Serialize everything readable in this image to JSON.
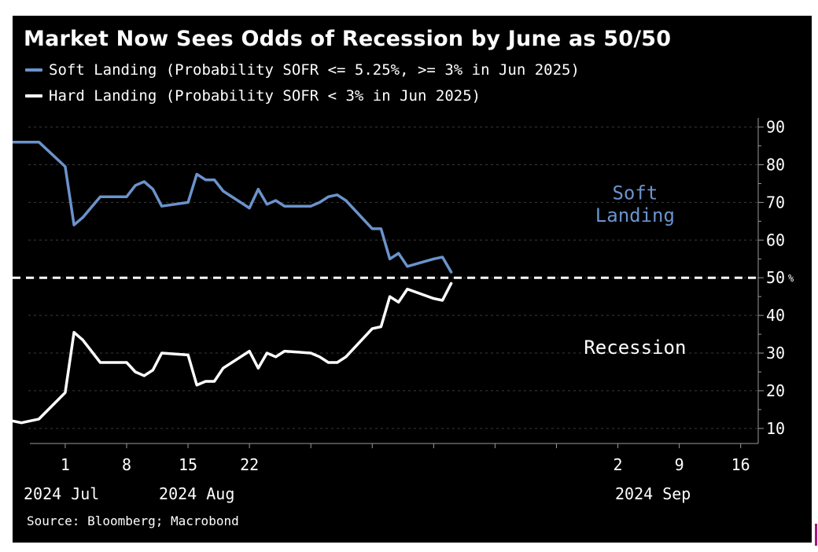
{
  "chart_data": {
    "type": "line",
    "title": "Market Now Sees Odds of Recession by June as 50/50",
    "source": "Source: Bloomberg; Macrobond",
    "x_tick_labels": [
      "1",
      "8",
      "15",
      "22",
      "2",
      "9",
      "16"
    ],
    "x_tick_dates": [
      "2024-07-01",
      "2024-07-08",
      "2024-07-15",
      "2024-07-22",
      "2024-09-02",
      "2024-09-09",
      "2024-09-16"
    ],
    "month_labels": [
      {
        "label": "2024 Jul",
        "date": "2024-06-25"
      },
      {
        "label": "2024 Aug",
        "date": "2024-07-16"
      },
      {
        "label": "2024 Sep",
        "date": "2024-09-06"
      }
    ],
    "xlim": [
      "2024-06-25",
      "2024-09-18"
    ],
    "y_ticks": [
      10,
      20,
      30,
      40,
      50,
      60,
      70,
      80,
      90
    ],
    "ylim": [
      6,
      92
    ],
    "y_unit": "%",
    "y_axis_side": "right",
    "reference_line": {
      "y": 50,
      "style": "dashed",
      "color": "#ffffff"
    },
    "annotations": [
      {
        "text": "Soft",
        "date": "2024-09-14",
        "y": 72.5,
        "color": "#6b93cc"
      },
      {
        "text": "Landing",
        "date": "2024-09-14",
        "y": 66.5,
        "color": "#6b93cc"
      },
      {
        "text": "Recession",
        "date": "2024-09-14",
        "y": 31.5,
        "color": "#ffffff"
      }
    ],
    "series": [
      {
        "name": "Soft Landing (Probability SOFR <= 5.25%, >= 3% in Jun 2025)",
        "color": "#6b93cc",
        "points": [
          [
            "2024-06-25",
            86
          ],
          [
            "2024-06-26",
            86
          ],
          [
            "2024-06-27",
            86
          ],
          [
            "2024-06-28",
            86
          ],
          [
            "2024-07-01",
            79.5
          ],
          [
            "2024-07-02",
            64
          ],
          [
            "2024-07-03",
            66
          ],
          [
            "2024-07-05",
            71.5
          ],
          [
            "2024-07-08",
            71.5
          ],
          [
            "2024-07-09",
            74.5
          ],
          [
            "2024-07-10",
            75.5
          ],
          [
            "2024-07-11",
            73.5
          ],
          [
            "2024-07-12",
            69
          ],
          [
            "2024-07-15",
            70
          ],
          [
            "2024-07-16",
            77.5
          ],
          [
            "2024-07-17",
            76
          ],
          [
            "2024-07-18",
            76
          ],
          [
            "2024-07-19",
            73
          ],
          [
            "2024-07-22",
            68.5
          ],
          [
            "2024-07-23",
            73.5
          ],
          [
            "2024-07-24",
            69.5
          ],
          [
            "2024-07-25",
            70.5
          ],
          [
            "2024-07-26",
            69
          ],
          [
            "2024-07-29",
            69
          ],
          [
            "2024-07-30",
            70
          ],
          [
            "2024-07-31",
            71.5
          ],
          [
            "2024-08-01",
            72
          ],
          [
            "2024-08-02",
            70.5
          ],
          [
            "2024-08-05",
            63
          ],
          [
            "2024-08-06",
            63
          ],
          [
            "2024-08-07",
            55
          ],
          [
            "2024-08-08",
            56.5
          ],
          [
            "2024-08-09",
            53
          ],
          [
            "2024-08-12",
            55
          ],
          [
            "2024-08-13",
            55.5
          ],
          [
            "2024-08-14",
            51.5
          ]
        ]
      },
      {
        "name": "Hard Landing (Probability SOFR < 3% in Jun 2025)",
        "color": "#ffffff",
        "points": [
          [
            "2024-06-25",
            12
          ],
          [
            "2024-06-26",
            11.5
          ],
          [
            "2024-06-27",
            12
          ],
          [
            "2024-06-28",
            12.5
          ],
          [
            "2024-07-01",
            19.5
          ],
          [
            "2024-07-02",
            35.5
          ],
          [
            "2024-07-03",
            33.5
          ],
          [
            "2024-07-05",
            27.5
          ],
          [
            "2024-07-08",
            27.5
          ],
          [
            "2024-07-09",
            25
          ],
          [
            "2024-07-10",
            24
          ],
          [
            "2024-07-11",
            25.5
          ],
          [
            "2024-07-12",
            30
          ],
          [
            "2024-07-15",
            29.5
          ],
          [
            "2024-07-16",
            21.5
          ],
          [
            "2024-07-17",
            22.5
          ],
          [
            "2024-07-18",
            22.5
          ],
          [
            "2024-07-19",
            26
          ],
          [
            "2024-07-22",
            30.5
          ],
          [
            "2024-07-23",
            26
          ],
          [
            "2024-07-24",
            30
          ],
          [
            "2024-07-25",
            29
          ],
          [
            "2024-07-26",
            30.5
          ],
          [
            "2024-07-29",
            30
          ],
          [
            "2024-07-30",
            29
          ],
          [
            "2024-07-31",
            27.5
          ],
          [
            "2024-08-01",
            27.5
          ],
          [
            "2024-08-02",
            29
          ],
          [
            "2024-08-05",
            36.5
          ],
          [
            "2024-08-06",
            37
          ],
          [
            "2024-08-07",
            45
          ],
          [
            "2024-08-08",
            43.5
          ],
          [
            "2024-08-09",
            47
          ],
          [
            "2024-08-12",
            44.5
          ],
          [
            "2024-08-13",
            44
          ],
          [
            "2024-08-14",
            48.5
          ]
        ]
      }
    ]
  }
}
